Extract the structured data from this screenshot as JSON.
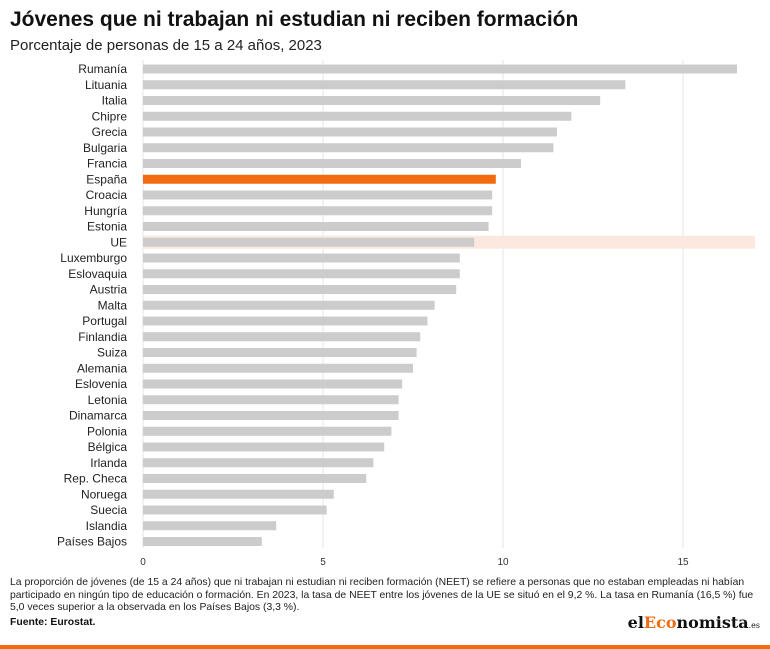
{
  "header": {
    "title": "Jóvenes que ni trabajan ni estudian ni reciben formación",
    "subtitle": "Porcentaje de personas de 15 a 24 años, 2023"
  },
  "chart_data": {
    "type": "bar",
    "orientation": "horizontal",
    "title": "Jóvenes que ni trabajan ni estudian ni reciben formación",
    "subtitle": "Porcentaje de personas de 15 a 24 años, 2023",
    "xlim": [
      0,
      17
    ],
    "xticks": [
      0,
      5,
      10,
      15
    ],
    "grid": true,
    "categories": [
      "Rumanía",
      "Lituania",
      "Italia",
      "Chipre",
      "Grecia",
      "Bulgaria",
      "Francia",
      "España",
      "Croacia",
      "Hungría",
      "Estonia",
      "UE",
      "Luxemburgo",
      "Eslovaquia",
      "Austria",
      "Malta",
      "Portugal",
      "Finlandia",
      "Suiza",
      "Alemania",
      "Eslovenia",
      "Letonia",
      "Dinamarca",
      "Polonia",
      "Bélgica",
      "Irlanda",
      "Rep. Checa",
      "Noruega",
      "Suecia",
      "Islandia",
      "Países Bajos"
    ],
    "values": [
      16.5,
      13.4,
      12.7,
      11.9,
      11.5,
      11.4,
      10.5,
      9.8,
      9.7,
      9.7,
      9.6,
      9.2,
      8.8,
      8.8,
      8.7,
      8.1,
      7.9,
      7.7,
      7.6,
      7.5,
      7.2,
      7.1,
      7.1,
      6.9,
      6.7,
      6.4,
      6.2,
      5.3,
      5.1,
      3.7,
      3.3
    ],
    "highlight": "España",
    "reference": "UE",
    "colors": {
      "bar": "#cccccc",
      "highlight": "#f26b0f",
      "reference_band": "#fde8df",
      "grid": "#e6e6e6"
    }
  },
  "footer": {
    "note": "La proporción de jóvenes (de 15 a 24 años) que ni trabajan ni estudian ni reciben formación (NEET) se refiere a personas que no estaban empleadas ni habían participado en ningún tipo de educación o formación. En 2023, la tasa de NEET entre los jóvenes de la UE se situó en el 9,2 %. La tasa en Rumanía (16,5 %) fue 5,0 veces superior a la observada en los Países Bajos (3,3 %).",
    "source": "Fuente: Eurostat.",
    "logo": {
      "part1": "el",
      "part2": "Eco",
      "part3": "nomista",
      "part4": ".es"
    }
  }
}
